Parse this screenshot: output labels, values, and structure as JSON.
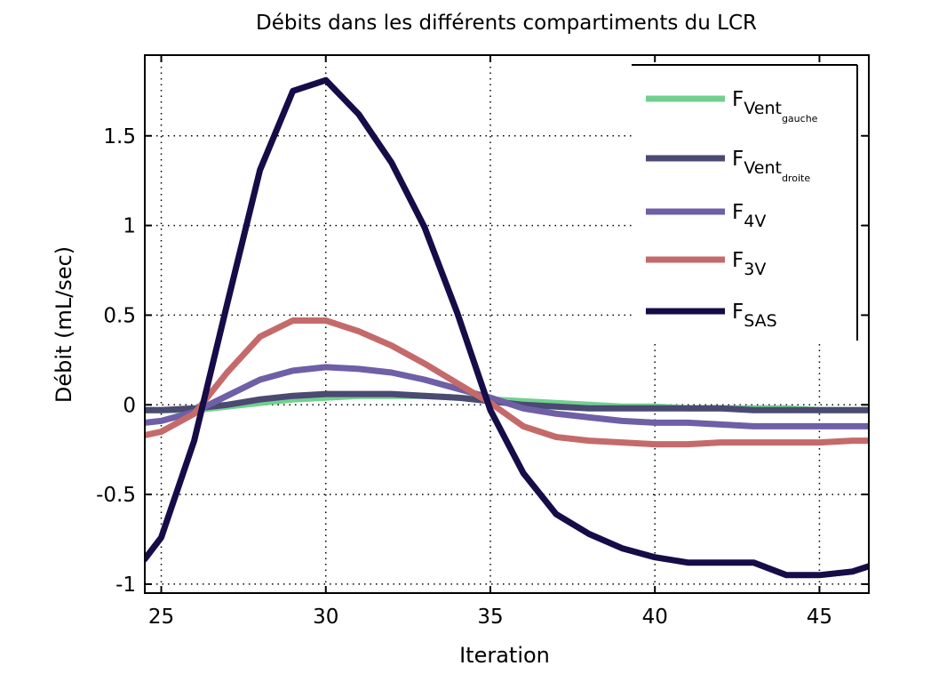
{
  "chart_data": {
    "type": "line",
    "title": "Débits dans les différents compartiments du LCR",
    "xlabel": "Iteration",
    "ylabel": "Débit (mL/sec)",
    "xlim": [
      24.5,
      46.5
    ],
    "ylim": [
      -1.05,
      1.95
    ],
    "xticks": [
      25,
      30,
      35,
      40,
      45
    ],
    "xtick_labels": [
      "25",
      "30",
      "35",
      "40",
      "45"
    ],
    "yticks": [
      -1,
      -0.5,
      0,
      0.5,
      1,
      1.5
    ],
    "ytick_labels": [
      "-1",
      "-0.5",
      "0",
      "0.5",
      "1",
      "1.5"
    ],
    "grid": true,
    "legend_position": "top-right",
    "x": [
      24.5,
      25,
      26,
      27,
      28,
      29,
      30,
      31,
      32,
      33,
      34,
      35,
      36,
      37,
      38,
      39,
      40,
      41,
      42,
      43,
      44,
      45,
      46,
      46.5
    ],
    "series": [
      {
        "name": "F",
        "sub": "Vent",
        "subsub": "gauche",
        "color": "#72d08f",
        "values": [
          -0.03,
          -0.03,
          -0.03,
          -0.01,
          0.01,
          0.03,
          0.04,
          0.05,
          0.05,
          0.05,
          0.04,
          0.03,
          0.02,
          0.01,
          0.0,
          -0.01,
          -0.01,
          -0.02,
          -0.02,
          -0.02,
          -0.02,
          -0.03,
          -0.03,
          -0.03
        ]
      },
      {
        "name": "F",
        "sub": "Vent",
        "subsub": "droite",
        "color": "#4a4a72",
        "values": [
          -0.03,
          -0.03,
          -0.02,
          0.0,
          0.03,
          0.05,
          0.06,
          0.06,
          0.06,
          0.05,
          0.04,
          0.02,
          0.0,
          -0.01,
          -0.02,
          -0.02,
          -0.02,
          -0.02,
          -0.02,
          -0.03,
          -0.03,
          -0.03,
          -0.03,
          -0.03
        ]
      },
      {
        "name": "F",
        "sub": "4V",
        "color": "#6e5fa6",
        "values": [
          -0.1,
          -0.09,
          -0.04,
          0.05,
          0.14,
          0.19,
          0.21,
          0.2,
          0.18,
          0.14,
          0.09,
          0.04,
          -0.02,
          -0.05,
          -0.07,
          -0.09,
          -0.1,
          -0.1,
          -0.11,
          -0.12,
          -0.12,
          -0.12,
          -0.12,
          -0.12
        ]
      },
      {
        "name": "F",
        "sub": "3V",
        "color": "#c56a6a",
        "values": [
          -0.17,
          -0.15,
          -0.05,
          0.18,
          0.38,
          0.47,
          0.47,
          0.41,
          0.33,
          0.23,
          0.12,
          0.01,
          -0.12,
          -0.18,
          -0.2,
          -0.21,
          -0.22,
          -0.22,
          -0.21,
          -0.21,
          -0.21,
          -0.21,
          -0.2,
          -0.2
        ]
      },
      {
        "name": "F",
        "sub": "SAS",
        "color": "#160c48",
        "values": [
          -0.86,
          -0.74,
          -0.2,
          0.56,
          1.31,
          1.75,
          1.81,
          1.62,
          1.35,
          0.99,
          0.51,
          -0.03,
          -0.38,
          -0.61,
          -0.72,
          -0.8,
          -0.85,
          -0.88,
          -0.88,
          -0.88,
          -0.95,
          -0.95,
          -0.93,
          -0.9
        ]
      }
    ]
  }
}
